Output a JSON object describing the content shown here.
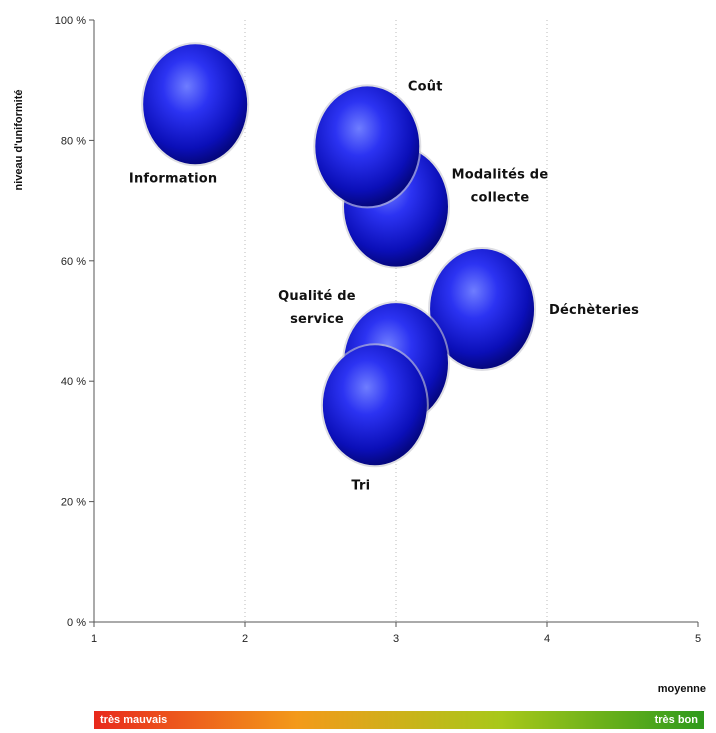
{
  "chart_data": {
    "type": "bubble",
    "xlabel": "moyenne",
    "ylabel": "niveau d'uniformité",
    "xlim": [
      1,
      5
    ],
    "ylim": [
      0,
      100
    ],
    "x_ticks": [
      "1",
      "2",
      "3",
      "4",
      "5"
    ],
    "y_ticks": [
      "0 %",
      "20 %",
      "40 %",
      "60 %",
      "80 %",
      "100 %"
    ],
    "bubble_color": "#1a1aff",
    "points": [
      {
        "label": "Information",
        "x": 1.67,
        "y": 86
      },
      {
        "label": "Modalités de collecte",
        "x": 3.0,
        "y": 69
      },
      {
        "label": "Coût",
        "x": 2.81,
        "y": 79
      },
      {
        "label": "Déchèteries",
        "x": 3.57,
        "y": 52
      },
      {
        "label": "Qualité de service",
        "x": 3.0,
        "y": 43
      },
      {
        "label": "Tri",
        "x": 2.86,
        "y": 36
      }
    ]
  },
  "scale": {
    "left_label": "très mauvais",
    "right_label": "très bon",
    "colors": [
      "#e8291c",
      "#f39a1b",
      "#a8c81a",
      "#2e9a1c"
    ]
  }
}
